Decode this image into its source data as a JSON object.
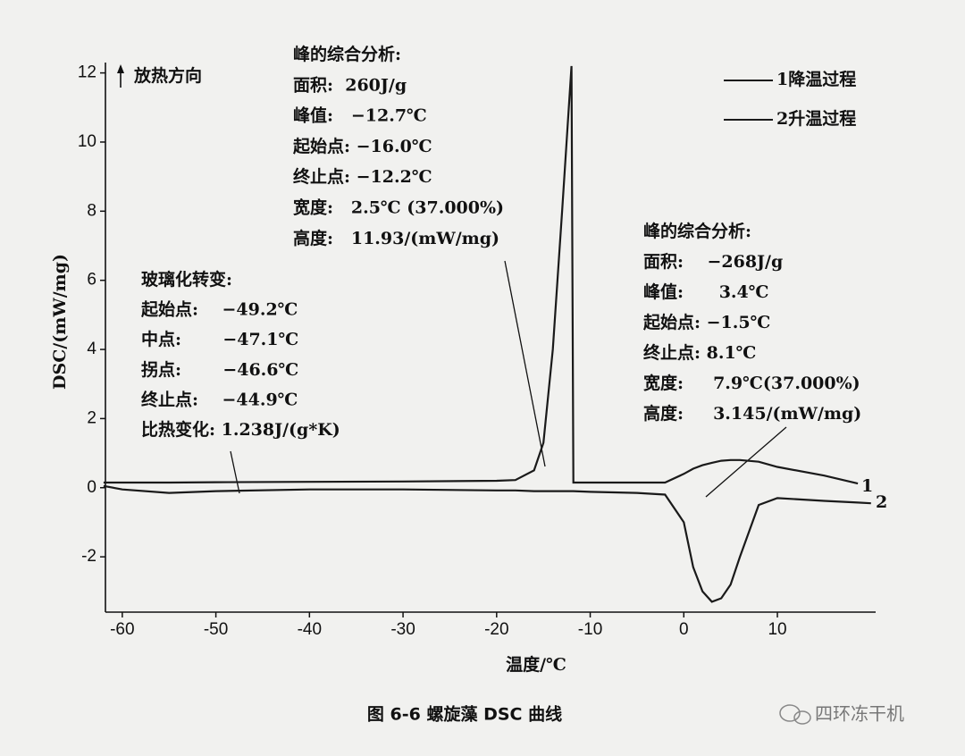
{
  "chart_data": {
    "type": "line",
    "caption": "图 6-6    螺旋藻 DSC 曲线",
    "watermark": "四环冻干机",
    "x_label": "温度/℃",
    "y_label": "DSC/(mW/mg)",
    "direction_label": "放热方向",
    "xlim": [
      -61.8,
      20.5
    ],
    "ylim": [
      -3.6,
      12.3
    ],
    "xticks": [
      -60,
      -50,
      -40,
      -30,
      -20,
      -10,
      0,
      10
    ],
    "yticks": [
      -2,
      0,
      2,
      4,
      6,
      8,
      10,
      12
    ],
    "x": [
      -62,
      -60,
      -55,
      -50,
      -40,
      -30,
      -20,
      -18,
      -16,
      -15,
      -14,
      -13,
      -12,
      -11.8,
      -10,
      -5,
      -2,
      0,
      1,
      2,
      3,
      4,
      5,
      6,
      8,
      10,
      15,
      18.6,
      20
    ],
    "series": [
      {
        "name": "1降温过程",
        "curve_label": "1",
        "color": "#1a1a1a",
        "values": [
          0.15,
          0.15,
          0.15,
          0.16,
          0.17,
          0.18,
          0.2,
          0.22,
          0.5,
          1.3,
          4,
          8,
          12.2,
          0.15,
          0.15,
          0.15,
          0.15,
          0.4,
          0.55,
          0.65,
          0.72,
          0.78,
          0.8,
          0.8,
          0.75,
          0.6,
          0.35,
          0.12,
          null
        ]
      },
      {
        "name": "2升温过程",
        "curve_label": "2",
        "color": "#1a1a1a",
        "values": [
          0.05,
          -0.05,
          -0.15,
          -0.1,
          -0.05,
          -0.05,
          -0.08,
          -0.08,
          -0.1,
          -0.1,
          -0.1,
          -0.1,
          -0.1,
          -0.1,
          -0.12,
          -0.15,
          -0.2,
          -1.0,
          -2.3,
          -3.0,
          -3.3,
          -3.2,
          -2.8,
          -2.0,
          -0.5,
          -0.3,
          -0.38,
          -0.43,
          -0.45
        ]
      }
    ],
    "annotations": [
      {
        "lines": [
          "峰的综合分析:",
          "面积:  260J/g",
          "峰值:   −12.7℃",
          "起始点: −16.0℃",
          "终止点: −12.2℃",
          "宽度:   2.5℃ (37.000%)",
          "高度:   11.93/(mW/mg)"
        ]
      },
      {
        "lines": [
          "玻璃化转变:",
          "起始点:    −49.2℃",
          "中点:       −47.1℃",
          "拐点:       −46.6℃",
          "终止点:    −44.9℃",
          "比热变化: 1.238J/(g*K)"
        ]
      },
      {
        "lines": [
          "峰的综合分析:",
          "面积:    −268J/g",
          "峰值:      3.4℃",
          "起始点: −1.5℃",
          "终止点: 8.1℃",
          "宽度:     7.9℃(37.000%)",
          "高度:     3.145/(mW/mg)"
        ]
      }
    ]
  }
}
